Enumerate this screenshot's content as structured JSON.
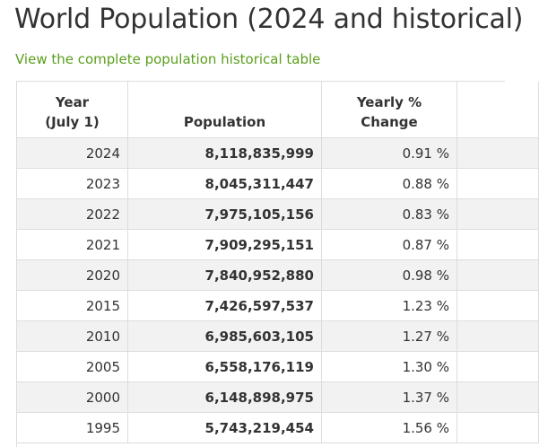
{
  "page": {
    "title": "World Population (2024 and historical)",
    "link_text": "View the complete population historical table"
  },
  "table": {
    "headers": {
      "year_line1": "Year",
      "year_line2": "(July 1)",
      "population": "Population",
      "change_line1": "Yearly %",
      "change_line2": "Change"
    },
    "rows": [
      {
        "year": "2024",
        "population": "8,118,835,999",
        "change": "0.91 %"
      },
      {
        "year": "2023",
        "population": "8,045,311,447",
        "change": "0.88 %"
      },
      {
        "year": "2022",
        "population": "7,975,105,156",
        "change": "0.83 %"
      },
      {
        "year": "2021",
        "population": "7,909,295,151",
        "change": "0.87 %"
      },
      {
        "year": "2020",
        "population": "7,840,952,880",
        "change": "0.98 %"
      },
      {
        "year": "2015",
        "population": "7,426,597,537",
        "change": "1.23 %"
      },
      {
        "year": "2010",
        "population": "6,985,603,105",
        "change": "1.27 %"
      },
      {
        "year": "2005",
        "population": "6,558,176,119",
        "change": "1.30 %"
      },
      {
        "year": "2000",
        "population": "6,148,898,975",
        "change": "1.37 %"
      },
      {
        "year": "1995",
        "population": "5,743,219,454",
        "change": "1.56 %"
      }
    ]
  },
  "colors": {
    "link": "#5a9e1b",
    "row_stripe": "#f2f2f2",
    "border": "#dddddd",
    "text": "#333333"
  }
}
